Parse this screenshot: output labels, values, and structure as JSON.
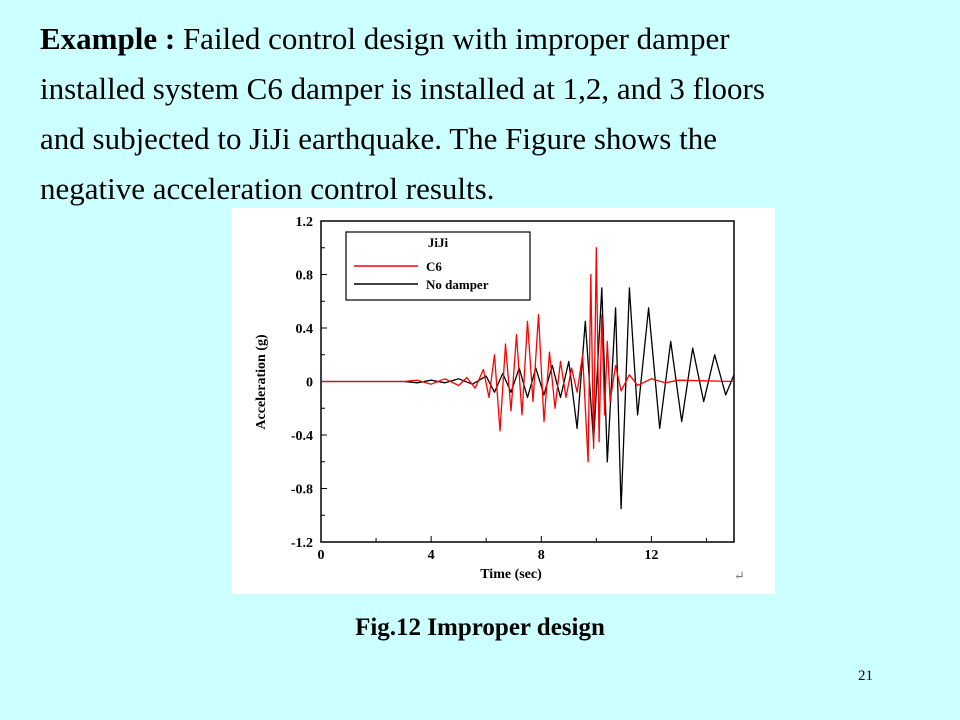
{
  "slide": {
    "heading_label": "Example :",
    "line1_rest": "Failed control design with improper damper",
    "line2": "installed system C6 damper is installed at 1,2, and 3 floors",
    "line3": "and subjected to JiJi earthquake. The Figure shows the",
    "line4": "negative acceleration control results.",
    "caption": "Fig.12  Improper design",
    "page_number": "21",
    "return_mark": "↵"
  },
  "chart_data": {
    "type": "line",
    "title": "",
    "xlabel": "Time (sec)",
    "ylabel": "Acceleration (g)",
    "xlim": [
      0,
      15
    ],
    "ylim": [
      -1.2,
      1.2
    ],
    "x_ticks": [
      0,
      4,
      8,
      12
    ],
    "x_tick_labels": [
      "0",
      "4",
      "8",
      "12"
    ],
    "y_ticks": [
      1.2,
      0.8,
      0.4,
      0,
      -0.4,
      -0.8,
      -1.2
    ],
    "y_tick_labels": [
      "1.2",
      "0.8",
      "0.4",
      "0",
      "-0.4",
      "-0.8",
      "-1.2"
    ],
    "legend_title": "JiJi",
    "legend_position": "top-left",
    "series": [
      {
        "name": "C6",
        "color": "#ff0000",
        "points": [
          [
            0,
            0
          ],
          [
            3,
            0
          ],
          [
            3.5,
            0.01
          ],
          [
            4,
            -0.02
          ],
          [
            4.5,
            0.02
          ],
          [
            5,
            -0.03
          ],
          [
            5.3,
            0.03
          ],
          [
            5.6,
            -0.05
          ],
          [
            5.9,
            0.09
          ],
          [
            6.1,
            -0.12
          ],
          [
            6.3,
            0.2
          ],
          [
            6.5,
            -0.37
          ],
          [
            6.7,
            0.28
          ],
          [
            6.9,
            -0.22
          ],
          [
            7.1,
            0.35
          ],
          [
            7.3,
            -0.25
          ],
          [
            7.5,
            0.45
          ],
          [
            7.7,
            -0.15
          ],
          [
            7.9,
            0.5
          ],
          [
            8.1,
            -0.3
          ],
          [
            8.3,
            0.22
          ],
          [
            8.5,
            -0.2
          ],
          [
            8.7,
            0.15
          ],
          [
            8.9,
            -0.12
          ],
          [
            9.1,
            0.1
          ],
          [
            9.3,
            -0.08
          ],
          [
            9.5,
            0.2
          ],
          [
            9.7,
            -0.6
          ],
          [
            9.8,
            0.8
          ],
          [
            9.9,
            -0.5
          ],
          [
            10,
            1.0
          ],
          [
            10.1,
            -0.45
          ],
          [
            10.2,
            0.5
          ],
          [
            10.3,
            -0.25
          ],
          [
            10.4,
            0.3
          ],
          [
            10.5,
            -0.15
          ],
          [
            10.7,
            0.12
          ],
          [
            10.9,
            -0.07
          ],
          [
            11.2,
            0.05
          ],
          [
            11.5,
            -0.03
          ],
          [
            12,
            0.02
          ],
          [
            12.5,
            -0.01
          ],
          [
            13,
            0.01
          ],
          [
            15,
            0
          ]
        ]
      },
      {
        "name": "No damper",
        "color": "#000000",
        "points": [
          [
            0,
            0
          ],
          [
            3,
            0
          ],
          [
            3.5,
            -0.01
          ],
          [
            4,
            0.01
          ],
          [
            4.5,
            -0.01
          ],
          [
            5,
            0.02
          ],
          [
            5.5,
            -0.02
          ],
          [
            6,
            0.04
          ],
          [
            6.3,
            -0.08
          ],
          [
            6.6,
            0.06
          ],
          [
            6.9,
            -0.08
          ],
          [
            7.2,
            0.1
          ],
          [
            7.5,
            -0.12
          ],
          [
            7.8,
            0.1
          ],
          [
            8.1,
            -0.1
          ],
          [
            8.4,
            0.12
          ],
          [
            8.7,
            -0.12
          ],
          [
            9,
            0.15
          ],
          [
            9.3,
            -0.35
          ],
          [
            9.6,
            0.45
          ],
          [
            9.9,
            -0.45
          ],
          [
            10.2,
            0.7
          ],
          [
            10.4,
            -0.6
          ],
          [
            10.7,
            0.55
          ],
          [
            10.9,
            -0.95
          ],
          [
            11.2,
            0.7
          ],
          [
            11.5,
            -0.25
          ],
          [
            11.9,
            0.55
          ],
          [
            12.3,
            -0.35
          ],
          [
            12.7,
            0.3
          ],
          [
            13.1,
            -0.3
          ],
          [
            13.5,
            0.25
          ],
          [
            13.9,
            -0.15
          ],
          [
            14.3,
            0.2
          ],
          [
            14.7,
            -0.1
          ],
          [
            15,
            0.05
          ]
        ]
      }
    ]
  }
}
